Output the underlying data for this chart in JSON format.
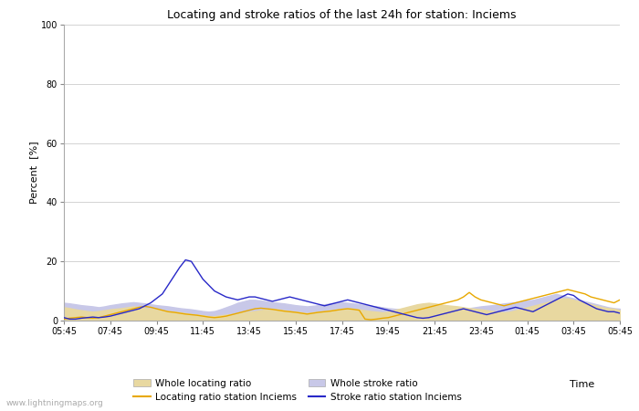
{
  "title": "Locating and stroke ratios of the last 24h for station: Inciems",
  "xlabel": "Time",
  "ylabel": "Percent  [%]",
  "ylim": [
    0,
    100
  ],
  "yticks": [
    0,
    20,
    40,
    60,
    80,
    100
  ],
  "x_labels": [
    "05:45",
    "07:45",
    "09:45",
    "11:45",
    "13:45",
    "15:45",
    "17:45",
    "19:45",
    "21:45",
    "23:45",
    "01:45",
    "03:45",
    "05:45"
  ],
  "watermark": "www.lightningmaps.org",
  "grid_color": "#cccccc",
  "whole_locating_fill_color": "#e8d8a0",
  "whole_stroke_fill_color": "#c8c8e8",
  "locating_station_color": "#e8a800",
  "stroke_station_color": "#2828c8",
  "n_points": 97,
  "whole_locating": [
    4.5,
    4.2,
    3.8,
    3.5,
    3.2,
    3.0,
    3.2,
    3.5,
    3.8,
    4.0,
    4.2,
    4.5,
    4.8,
    4.5,
    4.2,
    4.0,
    3.8,
    3.5,
    3.2,
    3.0,
    2.8,
    2.5,
    2.2,
    2.0,
    1.8,
    1.5,
    1.5,
    1.8,
    2.0,
    2.2,
    2.5,
    2.8,
    3.0,
    3.2,
    3.5,
    3.8,
    4.0,
    3.8,
    3.5,
    3.2,
    3.0,
    2.8,
    2.5,
    2.8,
    3.0,
    3.2,
    3.5,
    3.8,
    4.0,
    4.2,
    4.0,
    3.8,
    3.5,
    3.2,
    3.0,
    2.8,
    3.0,
    3.5,
    4.0,
    4.5,
    5.0,
    5.5,
    5.8,
    6.0,
    5.8,
    5.5,
    5.2,
    5.0,
    4.8,
    4.5,
    4.2,
    4.0,
    3.8,
    3.5,
    3.2,
    3.0,
    2.8,
    3.0,
    3.5,
    4.0,
    4.5,
    5.0,
    5.5,
    6.0,
    6.5,
    7.0,
    7.5,
    7.5,
    7.0,
    6.5,
    6.0,
    5.5,
    5.0,
    4.5,
    4.2,
    4.0,
    3.5
  ],
  "whole_stroke": [
    6.0,
    5.8,
    5.5,
    5.2,
    5.0,
    4.8,
    4.5,
    4.8,
    5.2,
    5.5,
    5.8,
    6.0,
    6.2,
    6.0,
    5.8,
    5.5,
    5.2,
    5.0,
    4.8,
    4.5,
    4.2,
    4.0,
    3.8,
    3.5,
    3.2,
    3.0,
    3.2,
    3.8,
    4.5,
    5.2,
    6.0,
    6.5,
    7.0,
    7.0,
    6.8,
    6.5,
    6.2,
    6.0,
    5.8,
    5.5,
    5.2,
    5.0,
    4.8,
    5.0,
    5.2,
    5.5,
    5.8,
    6.0,
    6.2,
    6.0,
    5.8,
    5.5,
    5.2,
    5.0,
    4.8,
    4.5,
    4.2,
    4.0,
    3.8,
    3.5,
    3.2,
    3.0,
    2.8,
    2.5,
    2.8,
    3.0,
    3.2,
    3.5,
    3.8,
    4.0,
    4.2,
    4.5,
    4.8,
    5.0,
    5.2,
    5.5,
    5.8,
    6.0,
    6.2,
    6.5,
    6.8,
    7.0,
    7.5,
    8.0,
    8.5,
    9.0,
    8.5,
    8.0,
    7.5,
    7.0,
    6.5,
    6.0,
    5.5,
    5.0,
    4.5,
    4.2,
    4.0
  ],
  "locating_station": [
    0.5,
    0.8,
    1.0,
    1.2,
    1.0,
    0.8,
    1.0,
    1.5,
    2.0,
    2.5,
    3.0,
    3.5,
    4.0,
    4.5,
    4.8,
    4.5,
    4.0,
    3.5,
    3.0,
    2.8,
    2.5,
    2.2,
    2.0,
    1.8,
    1.5,
    1.2,
    1.0,
    1.2,
    1.5,
    2.0,
    2.5,
    3.0,
    3.5,
    4.0,
    4.2,
    4.0,
    3.8,
    3.5,
    3.2,
    3.0,
    2.8,
    2.5,
    2.2,
    2.5,
    2.8,
    3.0,
    3.2,
    3.5,
    3.8,
    4.0,
    3.8,
    3.5,
    0.5,
    0.3,
    0.5,
    0.8,
    1.0,
    1.5,
    2.0,
    2.5,
    3.0,
    3.5,
    4.0,
    4.5,
    5.0,
    5.5,
    6.0,
    6.5,
    7.0,
    8.0,
    9.5,
    8.0,
    7.0,
    6.5,
    6.0,
    5.5,
    5.0,
    5.5,
    6.0,
    6.5,
    7.0,
    7.5,
    8.0,
    8.5,
    9.0,
    9.5,
    10.0,
    10.5,
    10.0,
    9.5,
    9.0,
    8.0,
    7.5,
    7.0,
    6.5,
    6.0,
    7.0
  ],
  "stroke_station": [
    1.0,
    0.5,
    0.5,
    0.8,
    1.0,
    1.2,
    1.0,
    1.2,
    1.5,
    2.0,
    2.5,
    3.0,
    3.5,
    4.0,
    5.0,
    6.0,
    7.5,
    9.0,
    12.0,
    15.0,
    18.0,
    20.5,
    20.0,
    17.0,
    14.0,
    12.0,
    10.0,
    9.0,
    8.0,
    7.5,
    7.0,
    7.5,
    8.0,
    8.0,
    7.5,
    7.0,
    6.5,
    7.0,
    7.5,
    8.0,
    7.5,
    7.0,
    6.5,
    6.0,
    5.5,
    5.0,
    5.5,
    6.0,
    6.5,
    7.0,
    6.5,
    6.0,
    5.5,
    5.0,
    4.5,
    4.0,
    3.5,
    3.0,
    2.5,
    2.0,
    1.5,
    1.0,
    0.8,
    1.0,
    1.5,
    2.0,
    2.5,
    3.0,
    3.5,
    4.0,
    3.5,
    3.0,
    2.5,
    2.0,
    2.5,
    3.0,
    3.5,
    4.0,
    4.5,
    4.0,
    3.5,
    3.0,
    4.0,
    5.0,
    6.0,
    7.0,
    8.0,
    9.0,
    8.5,
    7.0,
    6.0,
    5.0,
    4.0,
    3.5,
    3.0,
    3.0,
    2.5
  ]
}
